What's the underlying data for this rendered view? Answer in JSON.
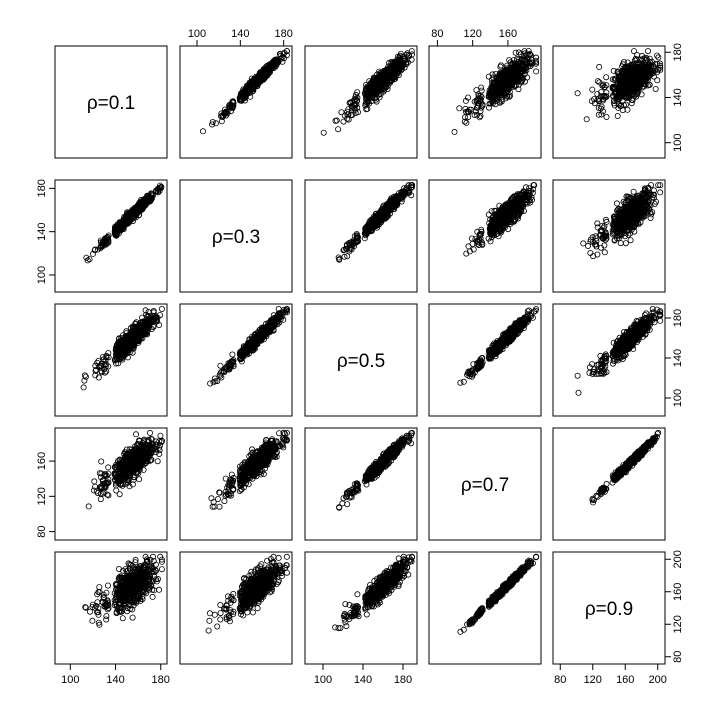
{
  "chart_data": {
    "type": "scatter-matrix",
    "variables": [
      {
        "label": "ρ=0.1",
        "range": [
          90,
          182
        ],
        "ticks": [
          100,
          140,
          180
        ]
      },
      {
        "label": "ρ=0.3",
        "range": [
          88,
          184
        ],
        "ticks": [
          100,
          140,
          180
        ]
      },
      {
        "label": "ρ=0.5",
        "range": [
          86,
          190
        ],
        "ticks": [
          100,
          140,
          180
        ]
      },
      {
        "label": "ρ=0.7",
        "range": [
          75,
          193
        ],
        "ticks": [
          80,
          120,
          160
        ]
      },
      {
        "label": "ρ=0.9",
        "range": [
          76,
          204
        ],
        "ticks": [
          80,
          120,
          160,
          200
        ]
      }
    ],
    "tick_sides": {
      "top": [
        1,
        3
      ],
      "bottom": [
        0,
        2,
        4
      ],
      "left": [
        1,
        3
      ],
      "right": [
        0,
        2,
        4
      ]
    },
    "panel_correlations": [
      [
        1.0,
        0.98,
        0.9,
        0.78,
        0.6
      ],
      [
        0.98,
        1.0,
        0.97,
        0.88,
        0.75
      ],
      [
        0.9,
        0.97,
        1.0,
        0.97,
        0.9
      ],
      [
        0.78,
        0.88,
        0.97,
        1.0,
        0.99
      ],
      [
        0.6,
        0.75,
        0.9,
        0.99,
        1.0
      ]
    ],
    "n_points": 600,
    "marker": "open-circle",
    "grid": false
  }
}
